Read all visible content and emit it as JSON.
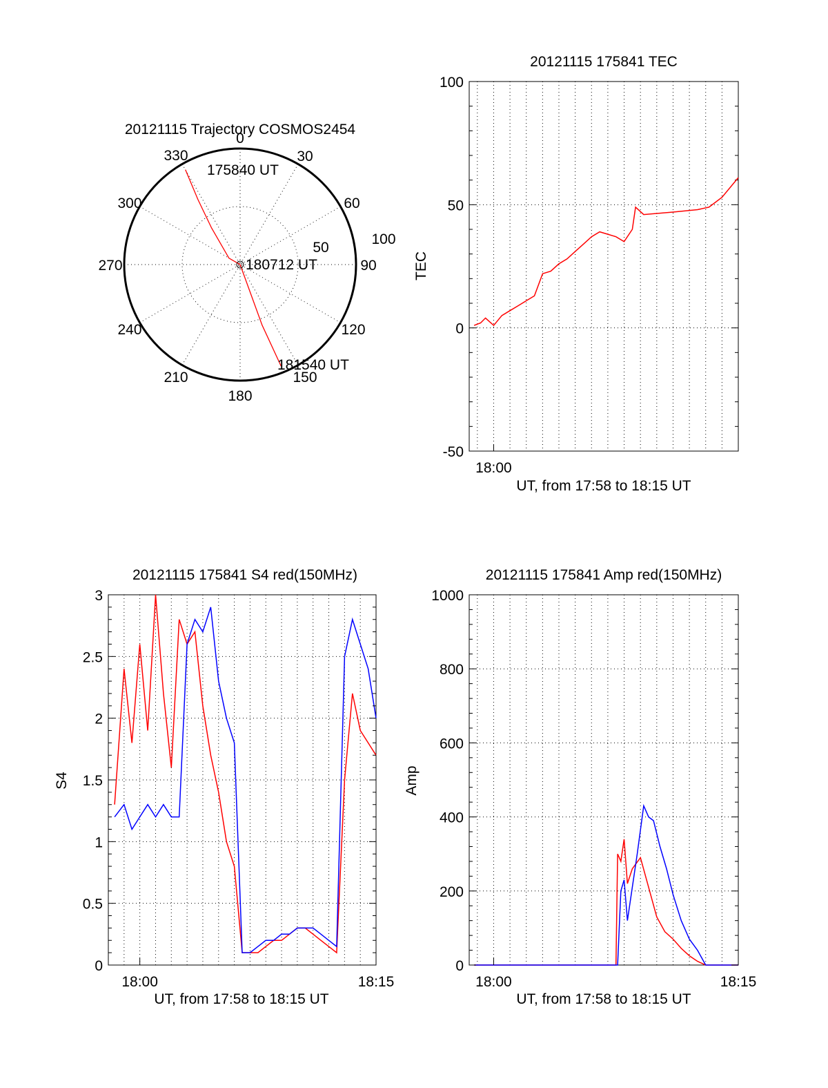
{
  "chart_data": [
    {
      "id": "trajectory",
      "type": "polar",
      "title": "20121115 Trajectory COSMOS2454",
      "azimuth_labels": [
        "0",
        "30",
        "60",
        "90",
        "120",
        "150",
        "180",
        "210",
        "240",
        "270",
        "300",
        "330"
      ],
      "radius_labels": [
        "50",
        "100"
      ],
      "center_label": "180712 UT",
      "start_label": "175840 UT",
      "end_label": "181540 UT",
      "track": [
        {
          "az": 330,
          "zen": 85
        },
        {
          "az": 327,
          "zen": 60
        },
        {
          "az": 322,
          "zen": 36
        },
        {
          "az": 300,
          "zen": 10
        },
        {
          "az": 180,
          "zen": 0
        },
        {
          "az": 160,
          "zen": 18
        },
        {
          "az": 160,
          "zen": 50
        },
        {
          "az": 158,
          "zen": 85
        }
      ],
      "track_color": "#ff0000"
    },
    {
      "id": "tec",
      "type": "line",
      "title": "20121115 175841 TEC",
      "ylabel": "TEC",
      "xlabel": "UT, from 17:58 to 18:15 UT",
      "xlim": [
        -1.5,
        15
      ],
      "ylim": [
        -50,
        100
      ],
      "yticks": [
        "100",
        "50",
        "0",
        "-50"
      ],
      "xtick_labels": [
        {
          "x": 0,
          "label": "18:00"
        }
      ],
      "series": [
        {
          "color": "#ff0000",
          "x": [
            -1.2,
            -0.8,
            -0.5,
            0,
            0.5,
            1,
            1.5,
            2,
            2.5,
            3,
            3.5,
            4,
            4.5,
            5,
            5.5,
            6,
            6.5,
            7,
            7.5,
            8,
            8.5,
            8.7,
            9.2,
            11,
            12.5,
            13.2,
            14,
            15
          ],
          "y": [
            1,
            2,
            4,
            1,
            5,
            7,
            9,
            11,
            13,
            22,
            23,
            26,
            28,
            31,
            34,
            37,
            39,
            38,
            37,
            35,
            40,
            49,
            46,
            47,
            48,
            49,
            53,
            61
          ]
        }
      ]
    },
    {
      "id": "s4",
      "type": "line",
      "title": "20121115 175841 S4 red(150MHz)",
      "ylabel": "S4",
      "xlabel": "UT, from 17:58 to 18:15 UT",
      "xlim": [
        -2,
        15
      ],
      "ylim": [
        0,
        3
      ],
      "yticks": [
        "3",
        "2.5",
        "2",
        "1.5",
        "1",
        "0.5",
        "0"
      ],
      "xtick_labels": [
        {
          "x": 0,
          "label": "18:00"
        },
        {
          "x": 15,
          "label": "18:15"
        }
      ],
      "series": [
        {
          "color": "#ff0000",
          "x": [
            -1.6,
            -1.0,
            -0.5,
            0,
            0.5,
            1,
            1.5,
            2,
            2.5,
            3,
            3.5,
            4,
            4.5,
            5,
            5.5,
            6,
            6.5,
            7,
            7.5,
            8,
            8.5,
            9,
            9.5,
            10,
            10.5,
            11,
            11.5,
            12,
            12.5,
            13,
            13.5,
            14,
            14.5,
            15
          ],
          "y": [
            1.3,
            2.4,
            1.8,
            2.6,
            1.9,
            3.0,
            2.2,
            1.6,
            2.8,
            2.6,
            2.7,
            2.1,
            1.7,
            1.4,
            1.0,
            0.8,
            0.1,
            0.1,
            0.1,
            0.15,
            0.2,
            0.2,
            0.25,
            0.3,
            0.3,
            0.25,
            0.2,
            0.15,
            0.1,
            1.5,
            2.2,
            1.9,
            1.8,
            1.7
          ]
        },
        {
          "color": "#0000ff",
          "x": [
            -1.6,
            -1.0,
            -0.5,
            0,
            0.5,
            1,
            1.5,
            2,
            2.5,
            3,
            3.5,
            4,
            4.5,
            5,
            5.5,
            6,
            6.5,
            7,
            7.5,
            8,
            8.5,
            9,
            9.5,
            10,
            10.5,
            11,
            11.5,
            12,
            12.5,
            13,
            13.5,
            14,
            14.5,
            15
          ],
          "y": [
            1.2,
            1.3,
            1.1,
            1.2,
            1.3,
            1.2,
            1.3,
            1.2,
            1.2,
            2.6,
            2.8,
            2.7,
            2.9,
            2.3,
            2.0,
            1.8,
            0.1,
            0.1,
            0.15,
            0.2,
            0.2,
            0.25,
            0.25,
            0.3,
            0.3,
            0.3,
            0.25,
            0.2,
            0.15,
            2.5,
            2.8,
            2.6,
            2.4,
            2.0
          ]
        }
      ]
    },
    {
      "id": "amp",
      "type": "line",
      "title": "20121115 175841 Amp red(150MHz)",
      "ylabel": "Amp",
      "xlabel": "UT, from 17:58 to 18:15 UT",
      "xlim": [
        -1.5,
        15
      ],
      "ylim": [
        0,
        1000
      ],
      "yticks": [
        "1000",
        "800",
        "600",
        "400",
        "200",
        "0"
      ],
      "xtick_labels": [
        {
          "x": 0,
          "label": "18:00"
        },
        {
          "x": 15,
          "label": "18:15"
        }
      ],
      "series": [
        {
          "color": "#ff0000",
          "x": [
            -1.2,
            7.5,
            7.6,
            7.8,
            8.0,
            8.2,
            8.5,
            9.0,
            9.5,
            10.0,
            10.5,
            11.0,
            11.5,
            12.0,
            12.5,
            13.0,
            15.0
          ],
          "y": [
            0,
            0,
            300,
            280,
            340,
            220,
            260,
            290,
            210,
            130,
            90,
            70,
            45,
            25,
            10,
            0,
            0
          ]
        },
        {
          "color": "#0000ff",
          "x": [
            -1.2,
            7.6,
            7.8,
            8.0,
            8.2,
            8.5,
            8.8,
            9.2,
            9.5,
            9.8,
            10.2,
            10.6,
            11.0,
            11.5,
            12.0,
            12.5,
            13.0,
            15.0
          ],
          "y": [
            0,
            0,
            200,
            230,
            120,
            210,
            300,
            430,
            400,
            390,
            320,
            260,
            190,
            120,
            70,
            40,
            0,
            0
          ]
        }
      ]
    }
  ]
}
